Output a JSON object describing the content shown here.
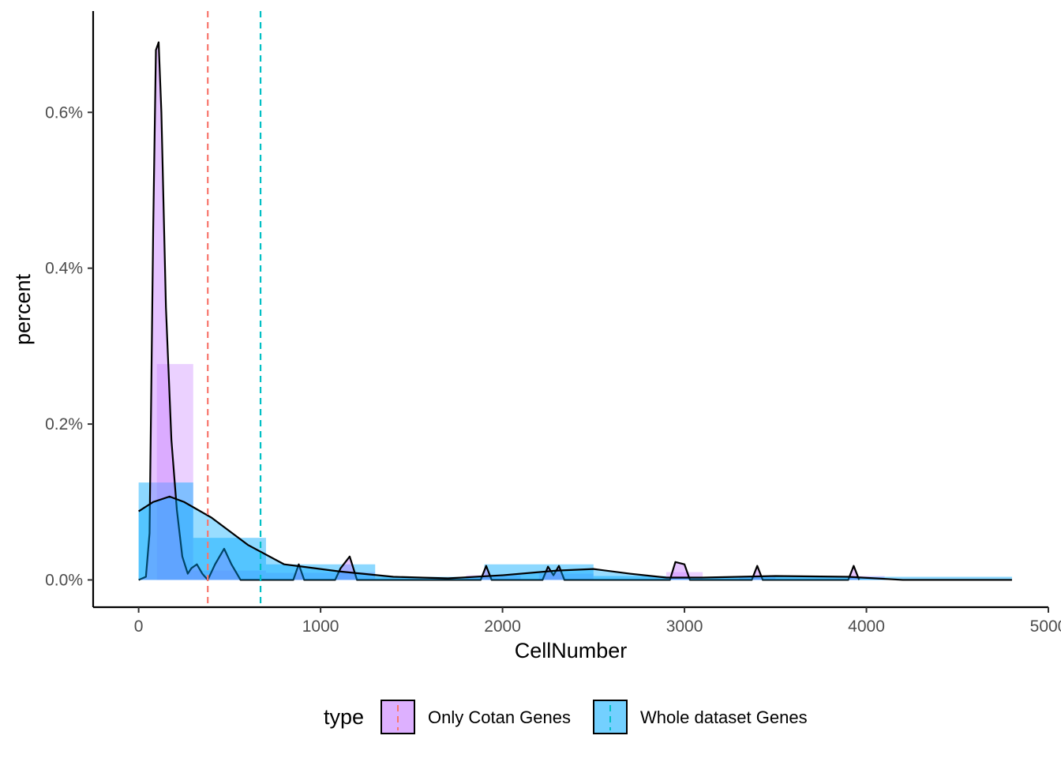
{
  "chart_data": {
    "type": "histogram",
    "xlabel": "CellNumber",
    "ylabel": "percent",
    "xlim": [
      -250,
      5000
    ],
    "ylim": [
      -0.00035,
      0.0073
    ],
    "x_ticks": [
      0,
      1000,
      2000,
      3000,
      4000,
      5000
    ],
    "x_tick_labels": [
      "0",
      "1000",
      "2000",
      "3000",
      "4000",
      "5000"
    ],
    "y_ticks": [
      0,
      0.002,
      0.004,
      0.006
    ],
    "y_tick_labels": [
      "0.0%",
      "0.2%",
      "0.4%",
      "0.6%"
    ],
    "grid": false,
    "legend": {
      "position": "bottom",
      "title": "type",
      "entries": [
        "Only Cotan Genes",
        "Whole dataset Genes"
      ]
    },
    "series": [
      {
        "name": "Only Cotan Genes",
        "color": "#C77CFF",
        "mean_line": 380,
        "mean_line_color": "#F8766D",
        "histogram": [
          {
            "x0": 100,
            "x1": 300,
            "y": 0.00277
          },
          {
            "x0": 300,
            "x1": 700,
            "y": 0.00012
          },
          {
            "x0": 700,
            "x1": 1100,
            "y": 9e-05
          },
          {
            "x0": 1100,
            "x1": 1300,
            "y": 0.0001
          },
          {
            "x0": 1800,
            "x1": 2100,
            "y": 6e-05
          },
          {
            "x0": 2200,
            "x1": 2500,
            "y": 8e-05
          },
          {
            "x0": 2900,
            "x1": 3100,
            "y": 0.0001
          },
          {
            "x0": 3300,
            "x1": 3500,
            "y": 5e-05
          },
          {
            "x0": 3900,
            "x1": 4100,
            "y": 5e-05
          }
        ],
        "density": [
          [
            0,
            0
          ],
          [
            40,
            4e-05
          ],
          [
            60,
            0.0006
          ],
          [
            80,
            0.0045
          ],
          [
            95,
            0.0068
          ],
          [
            110,
            0.0069
          ],
          [
            125,
            0.006
          ],
          [
            150,
            0.0035
          ],
          [
            180,
            0.0018
          ],
          [
            210,
            0.0009
          ],
          [
            240,
            0.0003
          ],
          [
            270,
            8e-05
          ],
          [
            290,
            0.00015
          ],
          [
            320,
            0.0002
          ],
          [
            350,
            8e-05
          ],
          [
            380,
            0
          ],
          [
            420,
            0.0002
          ],
          [
            470,
            0.0004
          ],
          [
            510,
            0.0002
          ],
          [
            560,
            0
          ],
          [
            850,
            0
          ],
          [
            880,
            0.0002
          ],
          [
            910,
            0
          ],
          [
            1080,
            0
          ],
          [
            1110,
            0.00015
          ],
          [
            1160,
            0.0003
          ],
          [
            1200,
            0
          ],
          [
            1880,
            0
          ],
          [
            1910,
            0.00018
          ],
          [
            1940,
            0
          ],
          [
            2220,
            0
          ],
          [
            2250,
            0.00017
          ],
          [
            2280,
            6e-05
          ],
          [
            2310,
            0.00018
          ],
          [
            2340,
            0
          ],
          [
            2920,
            0
          ],
          [
            2950,
            0.00023
          ],
          [
            3000,
            0.0002
          ],
          [
            3030,
            0
          ],
          [
            3370,
            0
          ],
          [
            3400,
            0.00018
          ],
          [
            3430,
            0
          ],
          [
            3900,
            0
          ],
          [
            3930,
            0.00018
          ],
          [
            3960,
            0
          ]
        ]
      },
      {
        "name": "Whole dataset Genes",
        "color": "#00A9FF",
        "mean_line": 670,
        "mean_line_color": "#00BFC4",
        "histogram": [
          {
            "x0": 0,
            "x1": 300,
            "y": 0.00125
          },
          {
            "x0": 300,
            "x1": 700,
            "y": 0.00054
          },
          {
            "x0": 700,
            "x1": 1300,
            "y": 0.0002
          },
          {
            "x0": 1300,
            "x1": 1900,
            "y": 4e-05
          },
          {
            "x0": 1900,
            "x1": 2500,
            "y": 0.0002
          },
          {
            "x0": 2500,
            "x1": 2900,
            "y": 5e-05
          },
          {
            "x0": 2900,
            "x1": 4800,
            "y": 4e-05
          }
        ],
        "density": [
          [
            0,
            0.00088
          ],
          [
            80,
            0.001
          ],
          [
            170,
            0.00107
          ],
          [
            250,
            0.001
          ],
          [
            400,
            0.0008
          ],
          [
            600,
            0.00045
          ],
          [
            800,
            0.0002
          ],
          [
            1100,
            0.00011
          ],
          [
            1400,
            4e-05
          ],
          [
            1700,
            2e-05
          ],
          [
            2000,
            6e-05
          ],
          [
            2300,
            0.00012
          ],
          [
            2500,
            0.00014
          ],
          [
            2700,
            8e-05
          ],
          [
            2900,
            3e-05
          ],
          [
            3100,
            3e-05
          ],
          [
            3500,
            5e-05
          ],
          [
            3900,
            4e-05
          ],
          [
            4200,
            0
          ],
          [
            4800,
            0
          ]
        ]
      }
    ]
  }
}
